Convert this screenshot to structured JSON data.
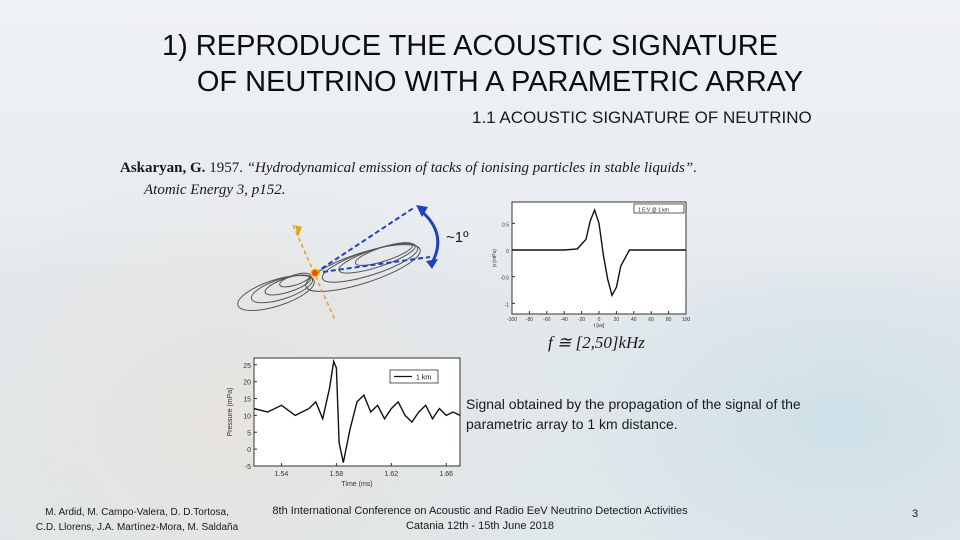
{
  "title": {
    "line1": "1)   REPRODUCE  THE ACOUSTIC SIGNATURE",
    "line2": "OF NEUTRINO WITH A PARAMETRIC ARRAY"
  },
  "subtitle": "1.1 ACOUSTIC SIGNATURE OF NEUTRINO",
  "reference": {
    "author": "Askaryan, G.",
    "year": "1957.",
    "title": "“Hydrodynamical emission of tacks of ionising particles in stable liquids”.",
    "journal": "Atomic Energy 3, p152."
  },
  "angle_label": "~1º",
  "formula": "f ≅ [2,50]kHz",
  "caption": "Signal obtained by the propagation of the signal of the parametric array to 1 km distance.",
  "authors": {
    "line1": "M. Ardid, M. Campo-Valera, D. D.Tortosa,",
    "line2": "C.D. Llorens, J.A. Martínez-Mora, M. Saldaña"
  },
  "conference": {
    "line1": "8th International Conference on Acoustic and Radio EeV Neutrino Detection Activities",
    "line2": "Catania 12th - 15th June 2018"
  },
  "page_number": "3",
  "chart_data": [
    {
      "type": "line",
      "legend": "1 E:V @ 1 km",
      "ylabel": "p (mPa)",
      "xlabel": "t [us]",
      "x_ticks": [
        "-100",
        "-80",
        "-60",
        "-40",
        "-20",
        "0",
        "20",
        "40",
        "60",
        "80",
        "100"
      ],
      "y_ticks": [
        "0.5",
        "0",
        "-0.5",
        "-1"
      ],
      "xlim": [
        -100,
        100
      ],
      "ylim": [
        -1.2,
        0.9
      ],
      "series": [
        {
          "x": [
            -100,
            -40,
            -25,
            -15,
            -10,
            -5,
            0,
            5,
            10,
            15,
            20,
            25,
            35,
            100
          ],
          "y": [
            0,
            0,
            0.02,
            0.2,
            0.55,
            0.75,
            0.5,
            -0.1,
            -0.55,
            -0.85,
            -0.7,
            -0.3,
            0,
            0
          ]
        }
      ]
    },
    {
      "type": "line",
      "legend": "1 km",
      "ylabel": "Pressure (mPa)",
      "xlabel": "Time (ms)",
      "x_ticks": [
        "1.54",
        "1.58",
        "1.62",
        "1.66"
      ],
      "y_ticks": [
        "25",
        "20",
        "15",
        "10",
        "5",
        "0",
        "-5"
      ],
      "xlim": [
        1.52,
        1.67
      ],
      "ylim": [
        -5,
        27
      ],
      "series": [
        {
          "x": [
            1.52,
            1.53,
            1.54,
            1.55,
            1.56,
            1.565,
            1.57,
            1.575,
            1.578,
            1.58,
            1.582,
            1.585,
            1.59,
            1.595,
            1.6,
            1.605,
            1.61,
            1.615,
            1.62,
            1.625,
            1.63,
            1.635,
            1.64,
            1.645,
            1.65,
            1.655,
            1.66,
            1.665,
            1.67
          ],
          "y": [
            12,
            11,
            13,
            10,
            12,
            14,
            9,
            18,
            26,
            24,
            2,
            -4,
            6,
            14,
            16,
            11,
            13,
            9,
            12,
            14,
            10,
            8,
            11,
            13,
            9,
            12,
            10,
            11,
            10
          ]
        }
      ]
    }
  ]
}
